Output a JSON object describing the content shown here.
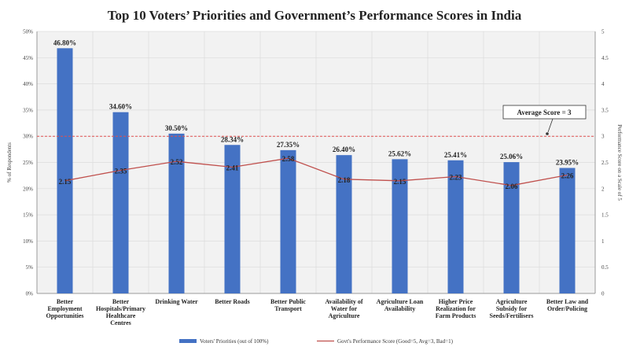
{
  "chart_data": {
    "type": "bar+line",
    "title": "Top 10 Voters’ Priorities and Government’s Performance Scores in India",
    "ylabel": "% of Respondents",
    "y2label": "Performance Score on a Scale of 5",
    "ylim": [
      0,
      50
    ],
    "y2lim": [
      0,
      5
    ],
    "yticks": [
      "0%",
      "5%",
      "10%",
      "15%",
      "20%",
      "25%",
      "30%",
      "35%",
      "40%",
      "45%",
      "50%"
    ],
    "y2ticks": [
      "0",
      "0.5",
      "1",
      "1.5",
      "2",
      "2.5",
      "3",
      "3.5",
      "4",
      "4.5",
      "5"
    ],
    "categories": [
      [
        "Better",
        "Employment",
        "Opportunities"
      ],
      [
        "Better",
        "Hospitals/Primary",
        "Healthcare",
        "Centres"
      ],
      [
        "Drinking Water"
      ],
      [
        "Better Roads"
      ],
      [
        "Better Public",
        "Transport"
      ],
      [
        "Availability of",
        "Water for",
        "Agriculture"
      ],
      [
        "Agriculture Loan",
        "Availability"
      ],
      [
        "Higher Price",
        "Realization for",
        "Farm Products"
      ],
      [
        "Agriculture",
        "Subsidy for",
        "Seeds/Fertilisers"
      ],
      [
        "Better Law and",
        "Order/Policing"
      ]
    ],
    "series": [
      {
        "name": "Voters' Priorities (out of 100%)",
        "type": "bar",
        "color": "#4472C4",
        "values": [
          46.8,
          34.6,
          30.5,
          28.34,
          27.35,
          26.4,
          25.62,
          25.41,
          25.06,
          23.95
        ],
        "labels": [
          "46.80%",
          "34.60%",
          "30.50%",
          "28.34%",
          "27.35%",
          "26.40%",
          "25.62%",
          "25.41%",
          "25.06%",
          "23.95%"
        ]
      },
      {
        "name": "Govt's Performance Score (Good=5, Avg=3, Bad=1)",
        "type": "line",
        "axis": "right",
        "color": "#C0504D",
        "values": [
          2.15,
          2.35,
          2.52,
          2.41,
          2.58,
          2.18,
          2.15,
          2.23,
          2.06,
          2.26
        ],
        "labels": [
          "2.15",
          "2.35",
          "2.52",
          "2.41",
          "2.58",
          "2.18",
          "2.15",
          "2.23",
          "2.06",
          "2.26"
        ]
      }
    ],
    "reference_line": {
      "axis": "right",
      "value": 3,
      "label": "Average Score = 3",
      "color": "#E05050"
    },
    "grid": true,
    "legend": "bottom"
  }
}
